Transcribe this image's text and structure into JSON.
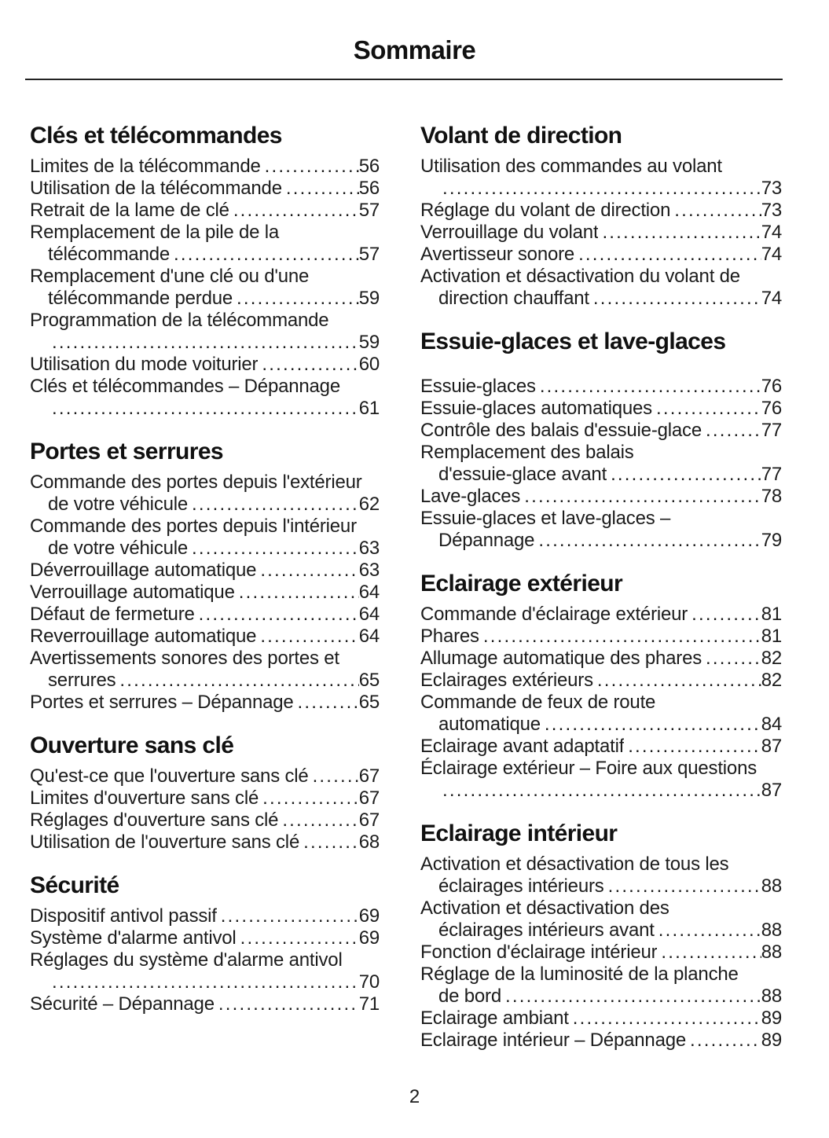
{
  "title": "Sommaire",
  "page_number": "2",
  "columns": {
    "left": [
      {
        "heading": "Clés et télécommandes",
        "entries": [
          {
            "lines": [
              "Limites de la télécommande"
            ],
            "page": "56"
          },
          {
            "lines": [
              "Utilisation de la télécommande"
            ],
            "page": "56"
          },
          {
            "lines": [
              "Retrait de la lame de clé"
            ],
            "page": "57"
          },
          {
            "lines": [
              "Remplacement de la pile de la",
              "télécommande"
            ],
            "page": "57"
          },
          {
            "lines": [
              "Remplacement d'une clé ou d'une",
              "télécommande perdue"
            ],
            "page": "59"
          },
          {
            "lines": [
              "Programmation de la télécommande",
              ""
            ],
            "page": "59"
          },
          {
            "lines": [
              "Utilisation du mode voiturier"
            ],
            "page": "60"
          },
          {
            "lines": [
              "Clés et télécommandes – Dépannage",
              ""
            ],
            "page": "61"
          }
        ]
      },
      {
        "heading": "Portes et serrures",
        "entries": [
          {
            "lines": [
              "Commande des portes depuis l'extérieur",
              "de votre véhicule"
            ],
            "page": "62"
          },
          {
            "lines": [
              "Commande des portes depuis l'intérieur",
              "de votre véhicule"
            ],
            "page": "63"
          },
          {
            "lines": [
              "Déverrouillage automatique"
            ],
            "page": "63"
          },
          {
            "lines": [
              "Verrouillage automatique"
            ],
            "page": "64"
          },
          {
            "lines": [
              "Défaut de fermeture"
            ],
            "page": "64"
          },
          {
            "lines": [
              "Reverrouillage automatique"
            ],
            "page": "64"
          },
          {
            "lines": [
              "Avertissements sonores des portes et",
              "serrures"
            ],
            "page": "65"
          },
          {
            "lines": [
              "Portes et serrures – Dépannage"
            ],
            "page": "65"
          }
        ]
      },
      {
        "heading": "Ouverture sans clé",
        "entries": [
          {
            "lines": [
              "Qu'est-ce que l'ouverture sans clé"
            ],
            "page": "67"
          },
          {
            "lines": [
              "Limites d'ouverture sans clé"
            ],
            "page": "67"
          },
          {
            "lines": [
              "Réglages d'ouverture sans clé"
            ],
            "page": "67"
          },
          {
            "lines": [
              "Utilisation de l'ouverture sans clé"
            ],
            "page": "68"
          }
        ]
      },
      {
        "heading": "Sécurité",
        "entries": [
          {
            "lines": [
              "Dispositif antivol passif"
            ],
            "page": "69"
          },
          {
            "lines": [
              "Système d'alarme antivol"
            ],
            "page": "69"
          },
          {
            "lines": [
              "Réglages du système d'alarme antivol",
              ""
            ],
            "page": "70"
          },
          {
            "lines": [
              "Sécurité – Dépannage"
            ],
            "page": "71"
          }
        ]
      }
    ],
    "right": [
      {
        "heading": "Volant de direction",
        "entries": [
          {
            "lines": [
              "Utilisation des commandes au volant",
              ""
            ],
            "page": "73"
          },
          {
            "lines": [
              "Réglage du volant de direction"
            ],
            "page": "73"
          },
          {
            "lines": [
              "Verrouillage du volant"
            ],
            "page": "74"
          },
          {
            "lines": [
              "Avertisseur sonore"
            ],
            "page": "74"
          },
          {
            "lines": [
              "Activation et désactivation du volant de",
              "direction chauffant"
            ],
            "page": "74"
          }
        ]
      },
      {
        "heading": "Essuie-glaces et lave-glaces",
        "extra_gap": true,
        "entries": [
          {
            "lines": [
              "Essuie-glaces"
            ],
            "page": "76"
          },
          {
            "lines": [
              "Essuie-glaces automatiques"
            ],
            "page": "76"
          },
          {
            "lines": [
              "Contrôle des balais d'essuie-glace"
            ],
            "page": "77"
          },
          {
            "lines": [
              "Remplacement des balais",
              "d'essuie-glace avant"
            ],
            "page": "77"
          },
          {
            "lines": [
              "Lave-glaces"
            ],
            "page": "78"
          },
          {
            "lines": [
              "Essuie-glaces et lave-glaces –",
              "Dépannage"
            ],
            "page": "79"
          }
        ]
      },
      {
        "heading": "Eclairage extérieur",
        "entries": [
          {
            "lines": [
              "Commande d'éclairage extérieur"
            ],
            "page": "81"
          },
          {
            "lines": [
              "Phares"
            ],
            "page": "81"
          },
          {
            "lines": [
              "Allumage automatique des phares"
            ],
            "page": "82"
          },
          {
            "lines": [
              "Eclairages extérieurs"
            ],
            "page": "82"
          },
          {
            "lines": [
              "Commande de feux de route",
              "automatique"
            ],
            "page": "84"
          },
          {
            "lines": [
              "Eclairage avant adaptatif"
            ],
            "page": "87"
          },
          {
            "lines": [
              "Éclairage extérieur – Foire aux questions",
              ""
            ],
            "page": "87"
          }
        ]
      },
      {
        "heading": "Eclairage intérieur",
        "entries": [
          {
            "lines": [
              "Activation et désactivation de tous les",
              "éclairages intérieurs"
            ],
            "page": "88"
          },
          {
            "lines": [
              "Activation et désactivation des",
              "éclairages intérieurs avant"
            ],
            "page": "88"
          },
          {
            "lines": [
              "Fonction d'éclairage intérieur"
            ],
            "page": "88"
          },
          {
            "lines": [
              "Réglage de la luminosité de la planche",
              "de bord"
            ],
            "page": "88"
          },
          {
            "lines": [
              "Eclairage ambiant"
            ],
            "page": "89"
          },
          {
            "lines": [
              "Eclairage intérieur – Dépannage"
            ],
            "page": "89"
          }
        ]
      }
    ]
  }
}
